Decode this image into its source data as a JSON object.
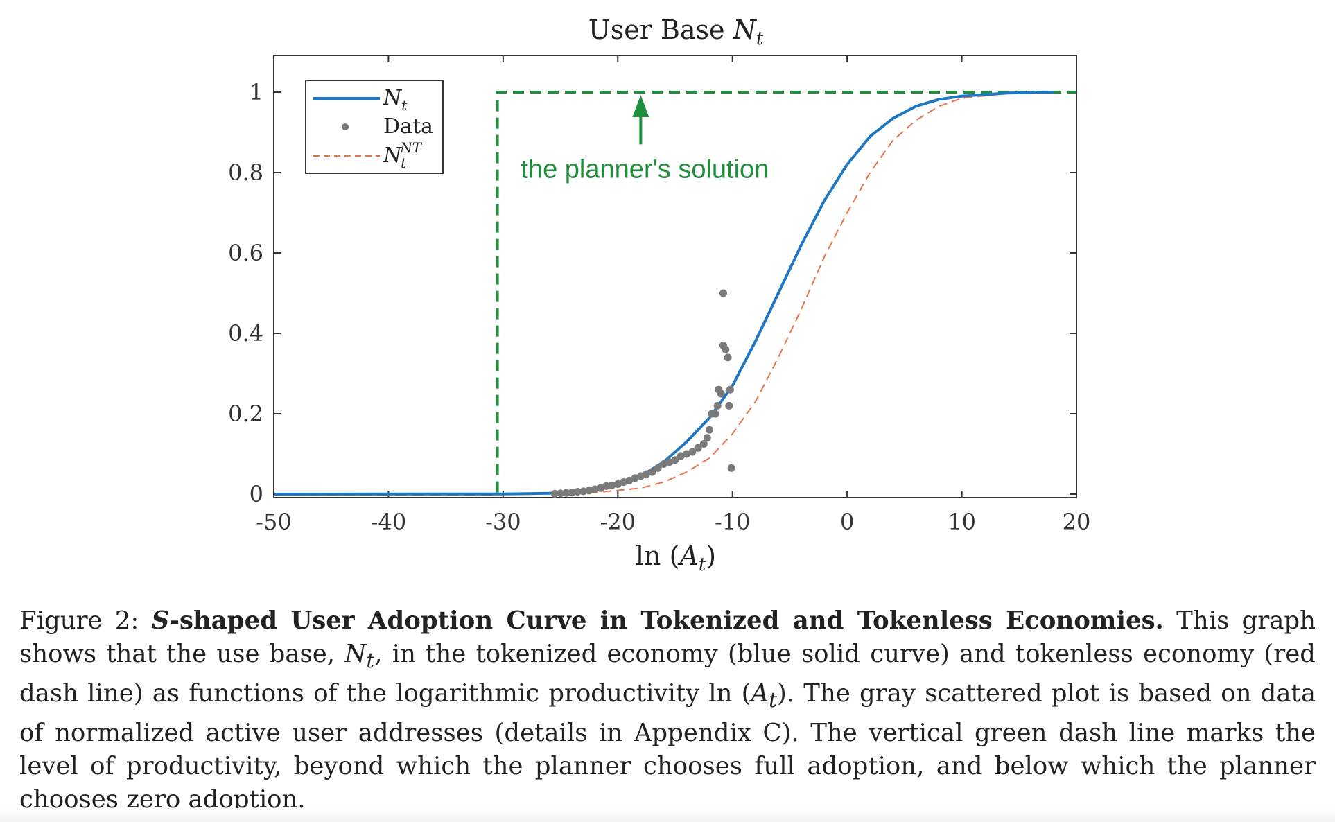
{
  "chart_data": {
    "type": "line",
    "title": "User Base N_t",
    "xlabel": "ln (A_t)",
    "ylabel": "",
    "xlim": [
      -50,
      20
    ],
    "ylim": [
      0,
      1.08
    ],
    "x_ticks": [
      -50,
      -40,
      -30,
      -20,
      -10,
      0,
      10,
      20
    ],
    "x_tick_labels": [
      "-50",
      "-40",
      "-30",
      "-20",
      "-10",
      "0",
      "10",
      "20"
    ],
    "y_ticks": [
      0,
      0.2,
      0.4,
      0.6,
      0.8,
      1
    ],
    "y_tick_labels": [
      "0",
      "0.2",
      "0.4",
      "0.6",
      "0.8",
      "1"
    ],
    "grid": false,
    "legend_position": "top-left",
    "series": [
      {
        "name": "N_t",
        "style": "solid",
        "color": "#1f77c4",
        "x": [
          -50,
          -30,
          -26,
          -24,
          -22,
          -20,
          -18,
          -16,
          -14,
          -12,
          -10,
          -8,
          -6,
          -4,
          -2,
          0,
          2,
          4,
          6,
          8,
          10,
          14,
          18
        ],
        "y": [
          0,
          0.0005,
          0.002,
          0.005,
          0.01,
          0.022,
          0.045,
          0.08,
          0.13,
          0.19,
          0.27,
          0.38,
          0.5,
          0.62,
          0.73,
          0.82,
          0.89,
          0.935,
          0.965,
          0.982,
          0.99,
          0.998,
          1.0
        ]
      },
      {
        "name": "Data",
        "style": "markers",
        "color": "#7a7a7a",
        "x": [
          -25.5,
          -25,
          -24.5,
          -24,
          -23.5,
          -23,
          -22.5,
          -22,
          -21.5,
          -21,
          -20.5,
          -20,
          -19.5,
          -19,
          -18.5,
          -18,
          -17.5,
          -17,
          -16.5,
          -16,
          -15.5,
          -15,
          -14.5,
          -14,
          -13.5,
          -13,
          -12.5,
          -12.2,
          -12,
          -11.8,
          -11.5,
          -11.3,
          -11.2,
          -11,
          -10.8,
          -10.6,
          -10.4,
          -10.2,
          -10.8,
          -10.3,
          -10.1
        ],
        "y": [
          0.001,
          0.002,
          0.003,
          0.004,
          0.006,
          0.007,
          0.009,
          0.012,
          0.015,
          0.02,
          0.022,
          0.025,
          0.03,
          0.034,
          0.04,
          0.045,
          0.05,
          0.055,
          0.065,
          0.075,
          0.08,
          0.085,
          0.095,
          0.1,
          0.105,
          0.115,
          0.125,
          0.14,
          0.16,
          0.2,
          0.2,
          0.22,
          0.26,
          0.25,
          0.37,
          0.36,
          0.34,
          0.26,
          0.5,
          0.22,
          0.065
        ]
      },
      {
        "name": "N_t^{NT}",
        "style": "dashed",
        "color": "#e8744a",
        "x": [
          -50,
          -30,
          -26,
          -22,
          -18,
          -16,
          -14,
          -12,
          -10,
          -8,
          -6,
          -4,
          -2,
          0,
          2,
          4,
          6,
          8,
          10,
          14,
          18
        ],
        "y": [
          0,
          0.0002,
          0.001,
          0.004,
          0.015,
          0.03,
          0.055,
          0.09,
          0.15,
          0.23,
          0.34,
          0.46,
          0.59,
          0.7,
          0.8,
          0.88,
          0.93,
          0.965,
          0.985,
          0.997,
          1.0
        ]
      },
      {
        "name": "planner",
        "style": "dashed",
        "color": "#1e8f3a",
        "x": [
          -50,
          -30.5,
          -30.5,
          20
        ],
        "y": [
          0,
          0,
          1,
          1
        ]
      }
    ],
    "annotations": [
      {
        "text": "the planner's solution",
        "arrow_from": [
          -18,
          0.87
        ],
        "arrow_to": [
          -18,
          1.0
        ]
      }
    ]
  },
  "legend": {
    "items": [
      "N",
      "Data",
      "N"
    ],
    "subscript_t": "t",
    "superscript_nt": "NT"
  },
  "caption": {
    "figure_label": "Figure 2:",
    "title_s": "S",
    "title_rest": "-shaped User Adoption Curve in Tokenized and Tokenless Economies.",
    "line1_tail": "This graph",
    "body_a": "shows that the use base,",
    "var_n": "N",
    "sub_t": "t",
    "body_b": ", in the tokenized economy (blue solid curve) and tokenless economy (red dash line) as functions of the logarithmic productivity ln (",
    "var_a": "A",
    "body_c": "). The gray scattered plot is based on data of normalized active user addresses (details in Appendix C). The vertical green dash line marks the level of productivity, beyond which the planner chooses full adoption, and below which the planner chooses zero adoption."
  },
  "colors": {
    "blue": "#1f77c4",
    "orange": "#e8744a",
    "green": "#1e8f3a",
    "gray": "#7a7a7a"
  }
}
